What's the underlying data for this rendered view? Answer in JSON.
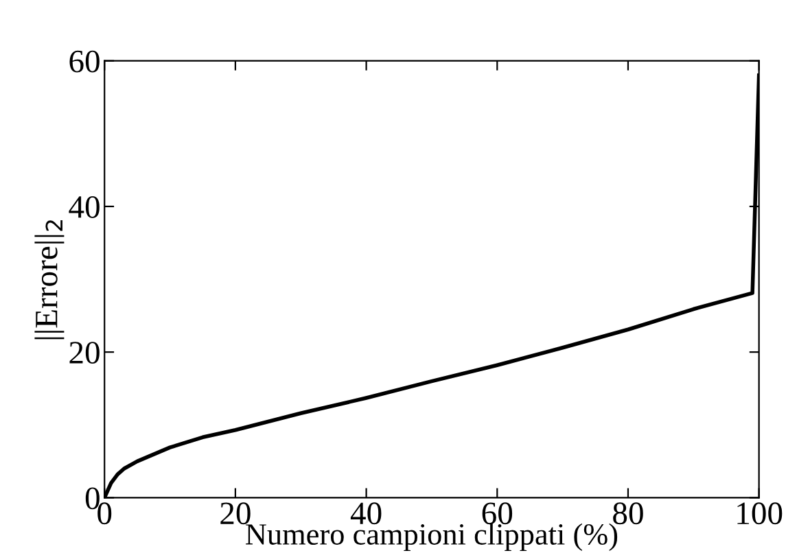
{
  "chart_data": {
    "type": "line",
    "xlabel": "Numero campioni clippati (%)",
    "ylabel": "||Errore||$_{2}$",
    "x": [
      0,
      1,
      2,
      3,
      5,
      10,
      15,
      20,
      30,
      40,
      50,
      60,
      70,
      80,
      90,
      99,
      100
    ],
    "series": [
      {
        "color": "#000000",
        "values": [
          0,
          2.0,
          3.2,
          4.0,
          5.0,
          6.9,
          8.3,
          9.3,
          11.6,
          13.7,
          16.0,
          18.2,
          20.6,
          23.1,
          25.9,
          28.1,
          58
        ]
      }
    ],
    "xlim": [
      0,
      100
    ],
    "ylim": [
      0,
      60
    ],
    "xticks": [
      0,
      20,
      40,
      60,
      80,
      100
    ],
    "yticks": [
      0,
      20,
      40,
      60
    ],
    "grid": false,
    "legend": false,
    "marker": "none",
    "line_style": "solid"
  }
}
